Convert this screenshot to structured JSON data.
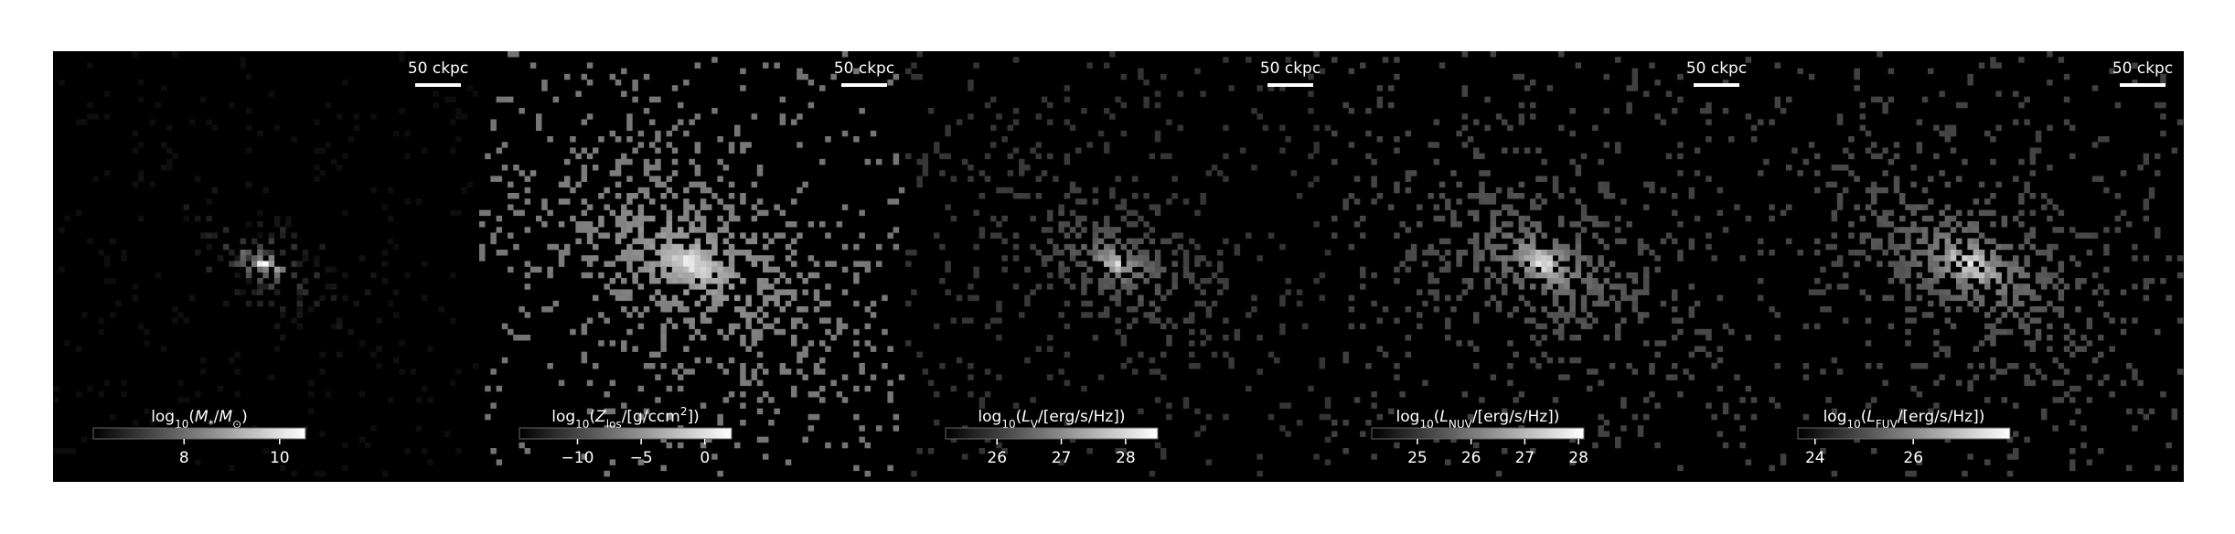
{
  "chart_data": [
    {
      "type": "image",
      "scale_bar_label": "50 ckpc",
      "colorbar": {
        "label": [
          {
            "text": "log"
          },
          {
            "text": "10",
            "script": "sub"
          },
          {
            "text": "("
          },
          {
            "text": "M",
            "italic": true
          },
          {
            "text": "*",
            "script": "sub"
          },
          {
            "text": "/"
          },
          {
            "text": "M",
            "italic": true
          },
          {
            "text": "⊙",
            "script": "sub"
          },
          {
            "text": ")"
          }
        ],
        "lim": [
          6.1,
          10.54
        ],
        "ticks": [
          8,
          10
        ]
      }
    },
    {
      "type": "image",
      "scale_bar_label": "50 ckpc",
      "colorbar": {
        "label": [
          {
            "text": "log"
          },
          {
            "text": "10",
            "script": "sub"
          },
          {
            "text": "("
          },
          {
            "text": "Z",
            "italic": true
          },
          {
            "text": "los",
            "script": "sub"
          },
          {
            "text": "/[g/ccm"
          },
          {
            "text": "2",
            "script": "super"
          },
          {
            "text": "])"
          }
        ],
        "lim": [
          -14.56,
          2.1
        ],
        "ticks": [
          {
            "value": -10,
            "label": "−10"
          },
          {
            "value": -5,
            "label": "−5"
          },
          0
        ]
      }
    },
    {
      "type": "image",
      "scale_bar_label": "50 ckpc",
      "colorbar": {
        "label": [
          {
            "text": "log"
          },
          {
            "text": "10",
            "script": "sub"
          },
          {
            "text": "("
          },
          {
            "text": "L",
            "italic": true
          },
          {
            "text": "V",
            "script": "sub"
          },
          {
            "text": "/[erg/s/Hz])"
          }
        ],
        "lim": [
          25.2,
          28.5
        ],
        "ticks": [
          26,
          27,
          28
        ]
      }
    },
    {
      "type": "image",
      "scale_bar_label": "50 ckpc",
      "colorbar": {
        "label": [
          {
            "text": "log"
          },
          {
            "text": "10",
            "script": "sub"
          },
          {
            "text": "("
          },
          {
            "text": "L",
            "italic": true
          },
          {
            "text": "NUV",
            "script": "sub"
          },
          {
            "text": "/[erg/s/Hz])"
          }
        ],
        "lim": [
          24.15,
          28.1
        ],
        "ticks": [
          25,
          26,
          27,
          28
        ]
      }
    },
    {
      "type": "image",
      "scale_bar_label": "50 ckpc",
      "colorbar": {
        "label": [
          {
            "text": "log"
          },
          {
            "text": "10",
            "script": "sub"
          },
          {
            "text": "("
          },
          {
            "text": "L",
            "italic": true
          },
          {
            "text": "FUV",
            "script": "sub"
          },
          {
            "text": "/[erg/s/Hz])"
          }
        ],
        "lim": [
          23.65,
          27.97
        ],
        "ticks": [
          24,
          26
        ]
      }
    }
  ]
}
